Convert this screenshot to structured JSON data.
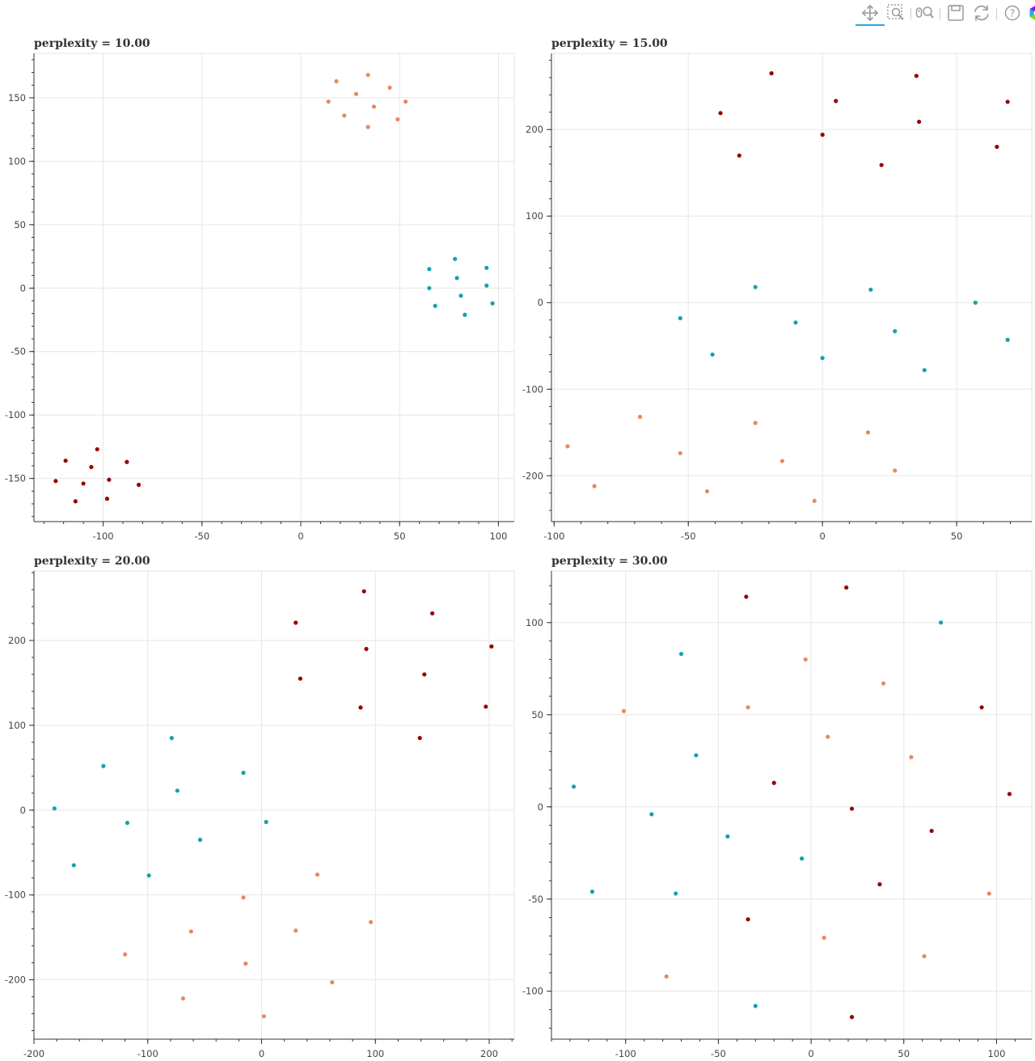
{
  "toolbar": {
    "tools": [
      {
        "name": "pan-tool",
        "icon": "pan-icon",
        "active": true
      },
      {
        "name": "box-zoom-tool",
        "icon": "box-zoom-icon",
        "active": false
      },
      {
        "name": "wheel-zoom-tool",
        "icon": "wheel-zoom-icon",
        "active": false
      },
      {
        "name": "save-tool",
        "icon": "save-icon",
        "active": false
      },
      {
        "name": "reset-tool",
        "icon": "reset-icon",
        "active": false
      },
      {
        "name": "help-tool",
        "icon": "help-icon",
        "active": false
      },
      {
        "name": "bokeh-logo",
        "icon": "bokeh-logo-icon",
        "active": false
      }
    ],
    "accent_color": "#26aae1"
  },
  "colors": {
    "dark_red": "#990000",
    "teal": "#14a3a8",
    "salmon": "#e8895f"
  },
  "chart_data": [
    {
      "type": "scatter",
      "title": "perplexity = 10.00",
      "xlim": [
        -135,
        108
      ],
      "ylim": [
        -184,
        185
      ],
      "xticks": [
        -100,
        -50,
        0,
        50,
        100
      ],
      "yticks": [
        -150,
        -100,
        -50,
        0,
        50,
        100,
        150
      ],
      "grid": true,
      "series": [
        {
          "color": "#990000",
          "points": [
            [
              -124,
              -152
            ],
            [
              -119,
              -136
            ],
            [
              -110,
              -154
            ],
            [
              -106,
              -141
            ],
            [
              -103,
              -127
            ],
            [
              -97,
              -151
            ],
            [
              -98,
              -166
            ],
            [
              -88,
              -137
            ],
            [
              -82,
              -155
            ],
            [
              -114,
              -168
            ]
          ]
        },
        {
          "color": "#e8895f",
          "points": [
            [
              18,
              163
            ],
            [
              34,
              168
            ],
            [
              45,
              158
            ],
            [
              14,
              147
            ],
            [
              28,
              153
            ],
            [
              37,
              143
            ],
            [
              53,
              147
            ],
            [
              22,
              136
            ],
            [
              34,
              127
            ],
            [
              49,
              133
            ]
          ]
        },
        {
          "color": "#14a3a8",
          "points": [
            [
              65,
              15
            ],
            [
              78,
              23
            ],
            [
              94,
              16
            ],
            [
              79,
              8
            ],
            [
              65,
              0
            ],
            [
              81,
              -6
            ],
            [
              94,
              2
            ],
            [
              68,
              -14
            ],
            [
              97,
              -12
            ],
            [
              83,
              -21
            ]
          ]
        }
      ]
    },
    {
      "type": "scatter",
      "title": "perplexity = 15.00",
      "xlim": [
        -101,
        78
      ],
      "ylim": [
        -253,
        288
      ],
      "xticks": [
        -100,
        -50,
        0,
        50
      ],
      "yticks": [
        -200,
        -100,
        0,
        100,
        200
      ],
      "grid": true,
      "series": [
        {
          "color": "#990000",
          "points": [
            [
              -19,
              265
            ],
            [
              35,
              262
            ],
            [
              -38,
              219
            ],
            [
              5,
              233
            ],
            [
              36,
              209
            ],
            [
              69,
              232
            ],
            [
              -31,
              170
            ],
            [
              0,
              194
            ],
            [
              22,
              159
            ],
            [
              65,
              180
            ]
          ]
        },
        {
          "color": "#14a3a8",
          "points": [
            [
              -25,
              18
            ],
            [
              18,
              15
            ],
            [
              57,
              0
            ],
            [
              -53,
              -18
            ],
            [
              -10,
              -23
            ],
            [
              27,
              -33
            ],
            [
              -41,
              -60
            ],
            [
              0,
              -64
            ],
            [
              69,
              -43
            ],
            [
              38,
              -78
            ]
          ]
        },
        {
          "color": "#e8895f",
          "points": [
            [
              -68,
              -132
            ],
            [
              -95,
              -166
            ],
            [
              -25,
              -139
            ],
            [
              17,
              -150
            ],
            [
              -53,
              -174
            ],
            [
              -15,
              -183
            ],
            [
              -85,
              -212
            ],
            [
              -43,
              -218
            ],
            [
              27,
              -194
            ],
            [
              -3,
              -229
            ]
          ]
        }
      ]
    },
    {
      "type": "scatter",
      "title": "perplexity = 20.00",
      "xlim": [
        -200,
        222
      ],
      "ylim": [
        -270,
        282
      ],
      "xticks": [
        -200,
        -100,
        0,
        100,
        200
      ],
      "yticks": [
        -200,
        -100,
        0,
        100,
        200
      ],
      "grid": true,
      "series": [
        {
          "color": "#990000",
          "points": [
            [
              90,
              258
            ],
            [
              30,
              221
            ],
            [
              150,
              232
            ],
            [
              92,
              190
            ],
            [
              202,
              193
            ],
            [
              34,
              155
            ],
            [
              143,
              160
            ],
            [
              87,
              121
            ],
            [
              197,
              122
            ],
            [
              139,
              85
            ]
          ]
        },
        {
          "color": "#14a3a8",
          "points": [
            [
              -79,
              85
            ],
            [
              -139,
              52
            ],
            [
              -16,
              44
            ],
            [
              -74,
              23
            ],
            [
              -182,
              2
            ],
            [
              -118,
              -15
            ],
            [
              4,
              -14
            ],
            [
              -54,
              -35
            ],
            [
              -165,
              -65
            ],
            [
              -99,
              -77
            ]
          ]
        },
        {
          "color": "#e8895f",
          "points": [
            [
              49,
              -76
            ],
            [
              -16,
              -103
            ],
            [
              96,
              -132
            ],
            [
              -62,
              -143
            ],
            [
              30,
              -142
            ],
            [
              -120,
              -170
            ],
            [
              -14,
              -181
            ],
            [
              62,
              -203
            ],
            [
              -69,
              -222
            ],
            [
              2,
              -243
            ]
          ]
        }
      ]
    },
    {
      "type": "scatter",
      "title": "perplexity = 30.00",
      "xlim": [
        -140,
        119
      ],
      "ylim": [
        -126,
        128
      ],
      "xticks": [
        -100,
        -50,
        0,
        50,
        100
      ],
      "yticks": [
        -100,
        -50,
        0,
        50,
        100
      ],
      "grid": true,
      "series": [
        {
          "color": "#990000",
          "points": [
            [
              -35,
              114
            ],
            [
              19,
              119
            ],
            [
              92,
              54
            ],
            [
              -20,
              13
            ],
            [
              107,
              7
            ],
            [
              22,
              -1
            ],
            [
              65,
              -13
            ],
            [
              37,
              -42
            ],
            [
              -34,
              -61
            ],
            [
              22,
              -114
            ]
          ]
        },
        {
          "color": "#14a3a8",
          "points": [
            [
              70,
              100
            ],
            [
              -70,
              83
            ],
            [
              -62,
              28
            ],
            [
              -128,
              11
            ],
            [
              -86,
              -4
            ],
            [
              -45,
              -16
            ],
            [
              -5,
              -28
            ],
            [
              -118,
              -46
            ],
            [
              -73,
              -47
            ],
            [
              -30,
              -108
            ]
          ]
        },
        {
          "color": "#e8895f",
          "points": [
            [
              -3,
              80
            ],
            [
              39,
              67
            ],
            [
              -101,
              52
            ],
            [
              -34,
              54
            ],
            [
              9,
              38
            ],
            [
              54,
              27
            ],
            [
              96,
              -47
            ],
            [
              7,
              -71
            ],
            [
              61,
              -81
            ],
            [
              -78,
              -92
            ]
          ]
        }
      ]
    }
  ]
}
